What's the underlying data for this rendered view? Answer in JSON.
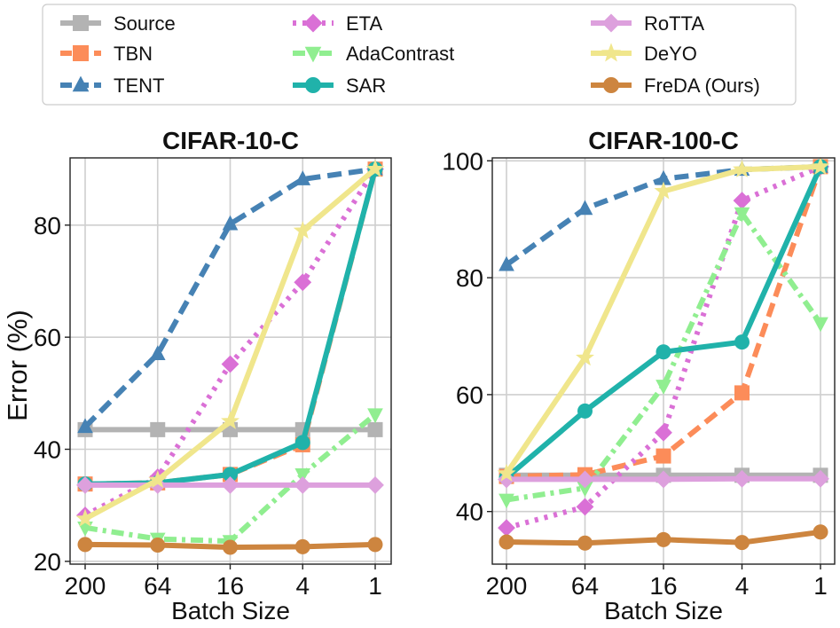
{
  "chart_data": {
    "type": "line",
    "shared_ylabel": "Error (%)",
    "legend": {
      "placement": "top",
      "entries": [
        "Source",
        "TBN",
        "TENT",
        "ETA",
        "AdaContrast",
        "SAR",
        "RoTTA",
        "DeYO",
        "FreDA (Ours)"
      ]
    },
    "series_styles": [
      {
        "name": "Source",
        "color": "#b3b3b3",
        "dash": "solid",
        "marker": "square"
      },
      {
        "name": "TBN",
        "color": "#fc8c59",
        "dash": "dashed",
        "marker": "square"
      },
      {
        "name": "TENT",
        "color": "#4682b4",
        "dash": "dashed",
        "marker": "triangle"
      },
      {
        "name": "ETA",
        "color": "#da70d6",
        "dash": "dotted",
        "marker": "diamond"
      },
      {
        "name": "AdaContrast",
        "color": "#90ee90",
        "dash": "dashdot",
        "marker": "triangle-down"
      },
      {
        "name": "SAR",
        "color": "#20b2aa",
        "dash": "solid",
        "marker": "circle"
      },
      {
        "name": "RoTTA",
        "color": "#dda0dd",
        "dash": "solid",
        "marker": "diamond"
      },
      {
        "name": "DeYO",
        "color": "#f0e68c",
        "dash": "solid",
        "marker": "star"
      },
      {
        "name": "FreDA (Ours)",
        "color": "#cd853f",
        "dash": "solid",
        "marker": "circle"
      }
    ],
    "panels": [
      {
        "title": "CIFAR-10-C",
        "xlabel": "Batch Size",
        "categories": [
          "200",
          "64",
          "16",
          "4",
          "1"
        ],
        "ylim": [
          19.5,
          92
        ],
        "yticks": [
          20,
          40,
          60,
          80
        ],
        "series": [
          {
            "name": "Source",
            "values": [
              43.5,
              43.5,
              43.5,
              43.5,
              43.5
            ]
          },
          {
            "name": "TBN",
            "values": [
              33.8,
              34.0,
              35.5,
              40.8,
              90.0
            ]
          },
          {
            "name": "TENT",
            "values": [
              44.0,
              57.0,
              80.2,
              88.2,
              90.0
            ]
          },
          {
            "name": "ETA",
            "values": [
              28.2,
              35.0,
              55.2,
              69.8,
              90.0
            ]
          },
          {
            "name": "AdaContrast",
            "values": [
              26.0,
              24.0,
              23.6,
              35.5,
              46.2
            ]
          },
          {
            "name": "SAR",
            "values": [
              33.8,
              34.0,
              35.5,
              41.2,
              90.0
            ]
          },
          {
            "name": "RoTTA",
            "values": [
              33.6,
              33.6,
              33.6,
              33.6,
              33.6
            ]
          },
          {
            "name": "DeYO",
            "values": [
              27.6,
              34.5,
              45.0,
              79.0,
              90.0
            ]
          },
          {
            "name": "FreDA (Ours)",
            "values": [
              23.0,
              22.9,
              22.5,
              22.6,
              23.0
            ]
          }
        ]
      },
      {
        "title": "CIFAR-100-C",
        "xlabel": "Batch Size",
        "categories": [
          "200",
          "64",
          "16",
          "4",
          "1"
        ],
        "ylim": [
          31,
          100.5
        ],
        "yticks": [
          40,
          60,
          80,
          100
        ],
        "series": [
          {
            "name": "Source",
            "values": [
              46.2,
              46.2,
              46.2,
              46.2,
              46.2
            ]
          },
          {
            "name": "TBN",
            "values": [
              46.0,
              46.3,
              49.5,
              60.3,
              99.0
            ]
          },
          {
            "name": "TENT",
            "values": [
              82.2,
              91.8,
              96.9,
              98.5,
              99.0
            ]
          },
          {
            "name": "ETA",
            "values": [
              37.2,
              40.8,
              53.5,
              93.2,
              99.0
            ]
          },
          {
            "name": "AdaContrast",
            "values": [
              42.0,
              44.0,
              61.5,
              91.0,
              72.2
            ]
          },
          {
            "name": "SAR",
            "values": [
              45.8,
              57.2,
              67.3,
              69.0,
              99.0
            ]
          },
          {
            "name": "RoTTA",
            "values": [
              45.5,
              45.5,
              45.5,
              45.6,
              45.6
            ]
          },
          {
            "name": "DeYO",
            "values": [
              46.5,
              66.3,
              94.8,
              98.5,
              99.0
            ]
          },
          {
            "name": "FreDA (Ours)",
            "values": [
              34.8,
              34.6,
              35.2,
              34.7,
              36.5
            ]
          }
        ]
      }
    ]
  }
}
